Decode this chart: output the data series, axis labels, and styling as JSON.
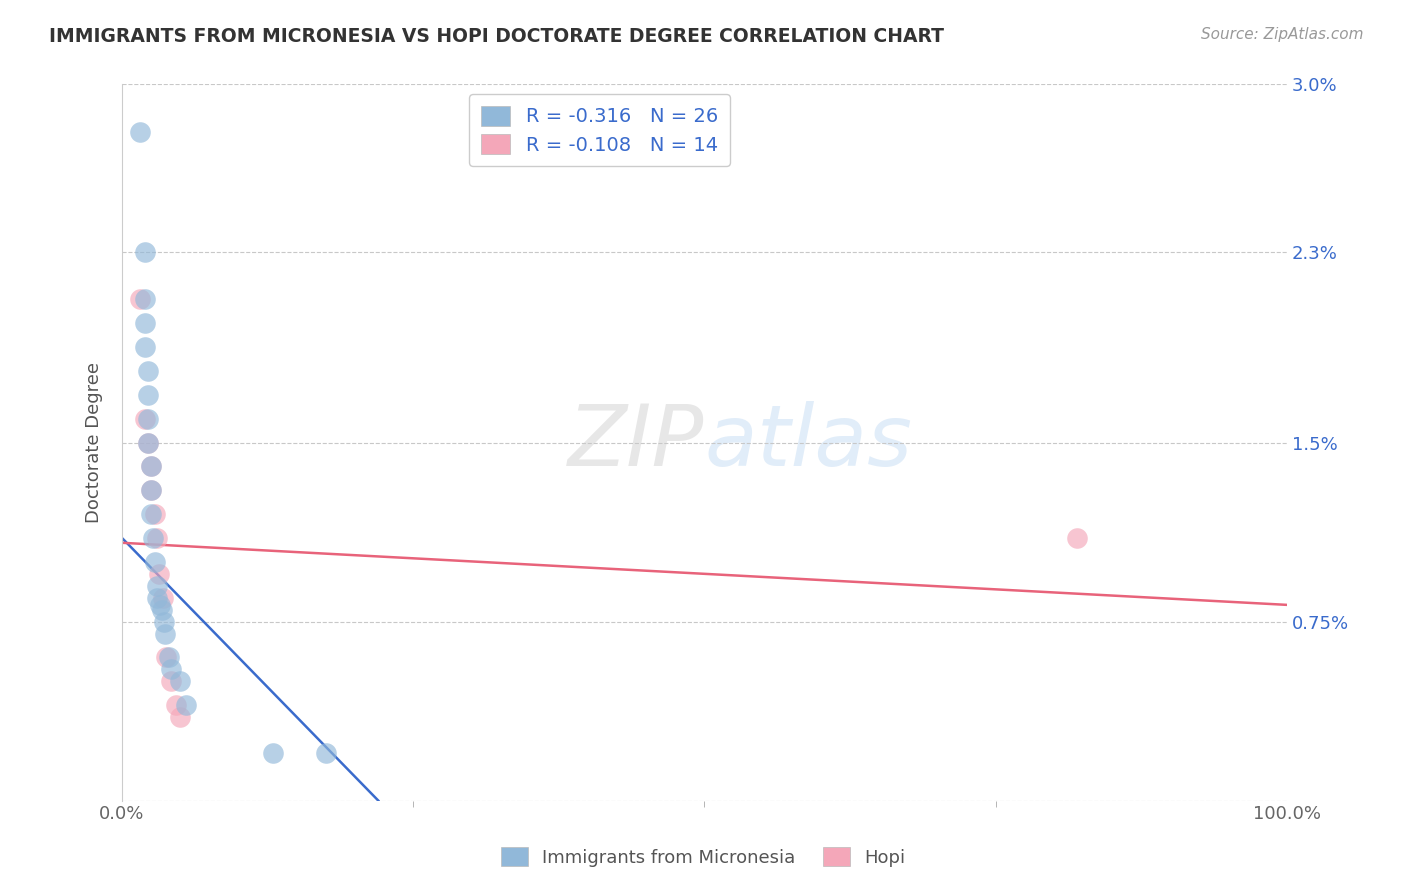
{
  "title": "IMMIGRANTS FROM MICRONESIA VS HOPI DOCTORATE DEGREE CORRELATION CHART",
  "source": "Source: ZipAtlas.com",
  "xlabel": "",
  "ylabel": "Doctorate Degree",
  "xlim": [
    0.0,
    1.0
  ],
  "ylim": [
    0.0,
    0.03
  ],
  "ytick_vals": [
    0.0,
    0.0075,
    0.015,
    0.023,
    0.03
  ],
  "ytick_labels_right": [
    "",
    "0.75%",
    "1.5%",
    "2.3%",
    "3.0%"
  ],
  "xtick_positions": [
    0.0,
    1.0
  ],
  "xtick_labels": [
    "0.0%",
    "100.0%"
  ],
  "r_blue": -0.316,
  "n_blue": 26,
  "r_pink": -0.108,
  "n_pink": 14,
  "blue_color": "#91b8d9",
  "pink_color": "#f4a7b9",
  "line_blue": "#3a6bcc",
  "line_pink": "#e8637a",
  "blue_line_x0": 0.0,
  "blue_line_y0": 0.011,
  "blue_line_x1": 0.22,
  "blue_line_y1": 0.0,
  "pink_line_x0": 0.0,
  "pink_line_y0": 0.0108,
  "pink_line_x1": 1.0,
  "pink_line_y1": 0.0082,
  "blue_points_x": [
    0.015,
    0.02,
    0.02,
    0.02,
    0.02,
    0.022,
    0.022,
    0.022,
    0.022,
    0.025,
    0.025,
    0.025,
    0.027,
    0.028,
    0.03,
    0.03,
    0.033,
    0.034,
    0.036,
    0.037,
    0.04,
    0.042,
    0.05,
    0.055,
    0.13,
    0.175
  ],
  "blue_points_y": [
    0.028,
    0.023,
    0.021,
    0.02,
    0.019,
    0.018,
    0.017,
    0.016,
    0.015,
    0.014,
    0.013,
    0.012,
    0.011,
    0.01,
    0.009,
    0.0085,
    0.0082,
    0.008,
    0.0075,
    0.007,
    0.006,
    0.0055,
    0.005,
    0.004,
    0.002,
    0.002
  ],
  "pink_points_x": [
    0.015,
    0.02,
    0.022,
    0.025,
    0.025,
    0.028,
    0.03,
    0.032,
    0.035,
    0.038,
    0.042,
    0.046,
    0.05,
    0.82
  ],
  "pink_points_y": [
    0.021,
    0.016,
    0.015,
    0.014,
    0.013,
    0.012,
    0.011,
    0.0095,
    0.0085,
    0.006,
    0.005,
    0.004,
    0.0035,
    0.011
  ],
  "legend_labels": [
    "Immigrants from Micronesia",
    "Hopi"
  ],
  "watermark_zip": "ZIP",
  "watermark_atlas": "atlas",
  "background_color": "#ffffff",
  "grid_color": "#c8c8c8"
}
